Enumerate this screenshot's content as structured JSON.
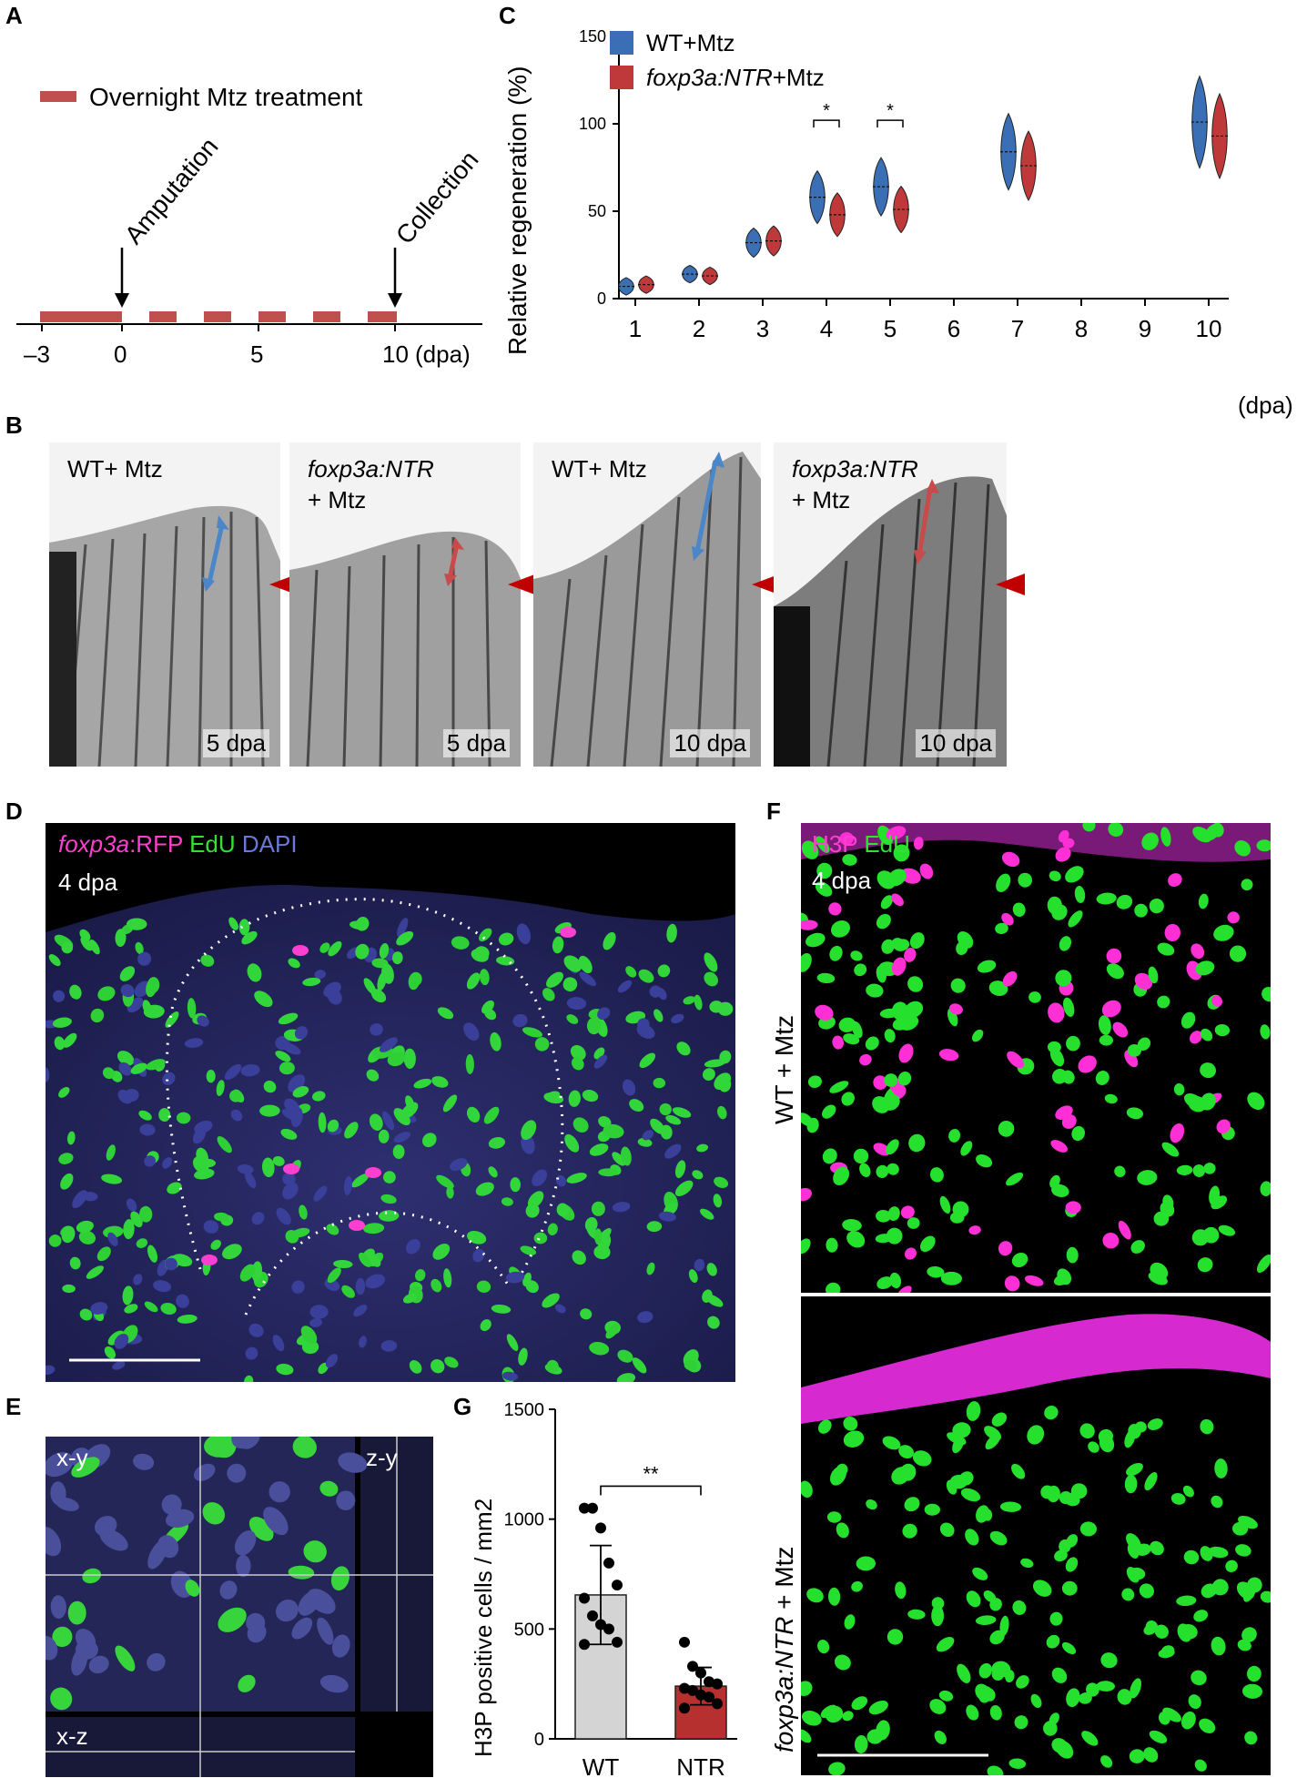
{
  "panels": {
    "a": "A",
    "b": "B",
    "c": "C",
    "d": "D",
    "e": "E",
    "f": "F",
    "g": "G"
  },
  "panelA": {
    "legend": "Overnight Mtz treatment",
    "amputation": "Amputation",
    "collection": "Collection",
    "ticks": [
      "–3",
      "0",
      "5",
      "10"
    ],
    "unit": "(dpa)",
    "color_treatment": "#c0504d"
  },
  "chart_data": [
    {
      "type": "violin",
      "ylabel": "Relative regeneration (%)",
      "xlabel": "",
      "x_unit": "(dpa)",
      "ylim": [
        0,
        150
      ],
      "yticks": [
        "0",
        "50",
        "100",
        "150"
      ],
      "categories": [
        "1",
        "2",
        "3",
        "4",
        "5",
        "6",
        "7",
        "8",
        "9",
        "10"
      ],
      "legend": [
        "WT+Mtz",
        "foxp3a:NTR+Mtz"
      ],
      "legend_placement": "top-left",
      "series": [
        {
          "name": "WT+Mtz",
          "color": "#3a6fb5",
          "medians": [
            7,
            14,
            32,
            58,
            64,
            null,
            84,
            null,
            null,
            101
          ]
        },
        {
          "name": "foxp3a:NTR+Mtz",
          "color": "#c0393a",
          "medians": [
            8,
            13,
            33,
            48,
            51,
            null,
            76,
            null,
            null,
            93
          ]
        }
      ],
      "significance": [
        {
          "category": "4",
          "label": "*"
        },
        {
          "category": "5",
          "label": "*"
        }
      ]
    },
    {
      "type": "bar",
      "ylabel": "H3P positive cells / mm2",
      "categories": [
        "WT",
        "NTR"
      ],
      "values": [
        655,
        240
      ],
      "errors": [
        225,
        85
      ],
      "ylim": [
        0,
        1500
      ],
      "yticks": [
        "0",
        "500",
        "1000",
        "1500"
      ],
      "colors": [
        "#d4d4d4",
        "#b5302f"
      ],
      "points": [
        [
          1050,
          1050,
          960,
          800,
          700,
          640,
          560,
          520,
          500,
          440,
          430
        ],
        [
          440,
          330,
          300,
          260,
          250,
          230,
          220,
          200,
          190,
          160,
          140
        ]
      ],
      "significance": "**"
    }
  ],
  "panelB": [
    {
      "line1": "WT+ Mtz",
      "line2": "",
      "time": "5 dpa",
      "arrow": "#4a86c8"
    },
    {
      "line1": "foxp3a:NTR",
      "line2": "+ Mtz",
      "time": "5 dpa",
      "arrow": "#c84a4a"
    },
    {
      "line1": "WT+ Mtz",
      "line2": "",
      "time": "10 dpa",
      "arrow": "#4a86c8"
    },
    {
      "line1": "foxp3a:NTR",
      "line2": "+ Mtz",
      "time": "10 dpa",
      "arrow": "#c84a4a"
    }
  ],
  "panelD": {
    "label_foxp3a": "foxp3a",
    "label_rfp": ":RFP",
    "label_edu": "EdU",
    "label_dapi": "DAPI",
    "time": "4 dpa",
    "color_rfp": "#ff3fd0",
    "color_edu": "#33e033",
    "color_dapi": "#6a78d8"
  },
  "panelE": {
    "xy": "x-y",
    "zy": "z-y",
    "xz": "x-z"
  },
  "panelF": {
    "label_h3p": "H3P",
    "label_edu": "EdU",
    "time": "4 dpa",
    "row1": "WT + Mtz",
    "row2_italic": "foxp3a:NTR",
    "row2_rest": " + Mtz"
  }
}
